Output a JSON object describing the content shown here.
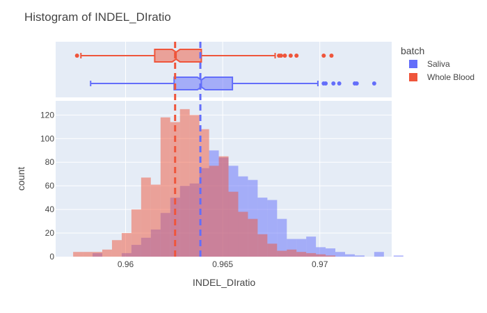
{
  "chart_data": {
    "type": "histogram",
    "title": "Histogram of INDEL_DIratio",
    "xlabel": "INDEL_DIratio",
    "ylabel": "count",
    "xlim": [
      0.9564,
      0.9737
    ],
    "ylim": [
      0,
      132
    ],
    "xticks": [
      0.96,
      0.965,
      0.97
    ],
    "xtick_labels": [
      "0.96",
      "0.965",
      "0.97"
    ],
    "yticks": [
      0,
      20,
      40,
      60,
      80,
      100,
      120
    ],
    "bin_start": 0.9573,
    "bin_width": 0.0005,
    "legend": {
      "title": "batch",
      "position": "right"
    },
    "series": [
      {
        "name": "Saliva",
        "color": "#636efa",
        "counts": [
          0,
          0,
          3,
          0,
          0,
          3,
          10,
          16,
          23,
          37,
          50,
          60,
          62,
          75,
          90,
          84,
          77,
          68,
          65,
          50,
          48,
          32,
          15,
          15,
          17,
          8,
          7,
          4,
          2,
          1,
          0,
          4,
          0,
          1
        ],
        "mean": 0.96385,
        "box": {
          "q1": 0.9625,
          "median": 0.9639,
          "q3": 0.9655,
          "lower_fence": 0.9582,
          "upper_fence": 0.9699,
          "notch_low": 0.9637,
          "notch_high": 0.9641,
          "outliers": [
            0.9702,
            0.9703,
            0.9707,
            0.971,
            0.9718,
            0.9719,
            0.9728
          ]
        }
      },
      {
        "name": "Whole Blood",
        "color": "#ef553b",
        "counts": [
          4,
          4,
          4,
          6,
          14,
          20,
          40,
          67,
          61,
          118,
          114,
          125,
          120,
          108,
          77,
          85,
          55,
          38,
          32,
          19,
          11,
          5,
          6,
          4,
          3,
          2,
          1,
          0,
          0,
          0,
          0,
          0,
          0,
          0
        ],
        "mean": 0.96255,
        "box": {
          "q1": 0.9615,
          "median": 0.9626,
          "q3": 0.9639,
          "lower_fence": 0.9577,
          "upper_fence": 0.9677,
          "notch_low": 0.9624,
          "notch_high": 0.9628,
          "outliers": [
            0.9575,
            0.9679,
            0.968,
            0.9682,
            0.9685,
            0.9688,
            0.9702,
            0.9706
          ]
        }
      }
    ]
  }
}
